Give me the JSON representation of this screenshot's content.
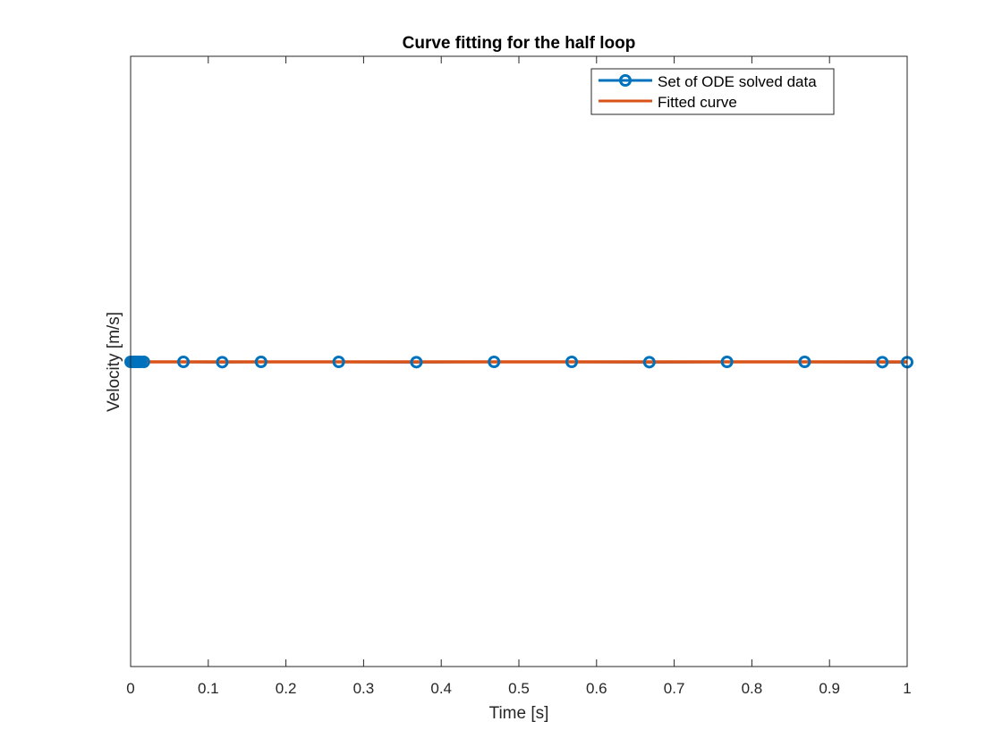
{
  "chart_data": {
    "type": "line",
    "title": "Curve fitting for the half loop",
    "xlabel": "Time [s]",
    "ylabel": "Velocity [m/s]",
    "xlim": [
      0,
      1
    ],
    "xticks": [
      "0",
      "0.1",
      "0.2",
      "0.3",
      "0.4",
      "0.5",
      "0.6",
      "0.7",
      "0.8",
      "0.9",
      "1"
    ],
    "yticks": [],
    "grid": false,
    "legend_position": "top-right",
    "series": [
      {
        "name": "Set of ODE solved data",
        "color": "#0072BD",
        "marker": "circle",
        "x": [
          0,
          0.002,
          0.004,
          0.006,
          0.008,
          0.01,
          0.013,
          0.017,
          0.068,
          0.118,
          0.168,
          0.268,
          0.368,
          0.468,
          0.568,
          0.668,
          0.768,
          0.868,
          0.968,
          1.0
        ],
        "y": [
          0,
          0,
          0,
          0,
          0,
          0,
          0,
          0,
          0,
          -0.002,
          0,
          0,
          -0.002,
          0,
          0,
          -0.002,
          0,
          0,
          -0.002,
          -0.002
        ]
      },
      {
        "name": "Fitted curve",
        "color": "#D95319",
        "marker": "none",
        "x": [
          0,
          1
        ],
        "y": [
          0,
          0
        ]
      }
    ]
  }
}
